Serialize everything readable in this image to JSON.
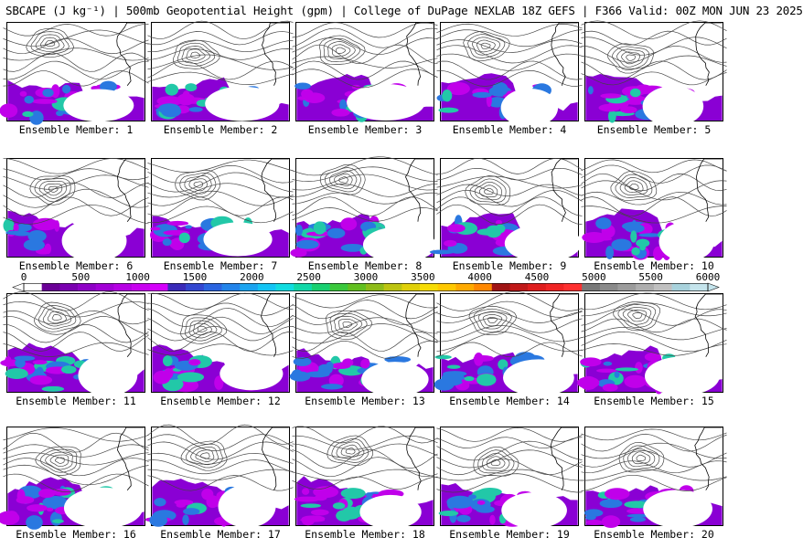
{
  "title": "SBCAPE (J kg⁻¹) | 500mb Geopotential Height (gpm) | College of DuPage NEXLAB 18Z GEFS | F366 Valid: 00Z MON JUN 23 2025",
  "members": [
    "Ensemble Member: 1",
    "Ensemble Member: 2",
    "Ensemble Member: 3",
    "Ensemble Member: 4",
    "Ensemble Member: 5",
    "Ensemble Member: 6",
    "Ensemble Member: 7",
    "Ensemble Member: 8",
    "Ensemble Member: 9",
    "Ensemble Member: 10",
    "Ensemble Member: 11",
    "Ensemble Member: 12",
    "Ensemble Member: 13",
    "Ensemble Member: 14",
    "Ensemble Member: 15",
    "Ensemble Member: 16",
    "Ensemble Member: 17",
    "Ensemble Member: 18",
    "Ensemble Member: 19",
    "Ensemble Member: 20"
  ],
  "colorbar": {
    "ticks": [
      "0",
      "500",
      "1000",
      "1500",
      "2000",
      "2500",
      "3000",
      "3500",
      "4000",
      "4500",
      "5000",
      "5500",
      "6000"
    ],
    "colors": [
      "#ffffff",
      "#6a0096",
      "#7a00b0",
      "#8e00c6",
      "#a200d6",
      "#b600e4",
      "#c800f0",
      "#d400fa",
      "#3a2ab8",
      "#3246d0",
      "#2a64e0",
      "#2284ea",
      "#1aa4f0",
      "#12c4f4",
      "#10dce0",
      "#10d8a8",
      "#18d070",
      "#3ac83c",
      "#62c020",
      "#8ebc18",
      "#bcc410",
      "#e0d008",
      "#f6dc04",
      "#ffc800",
      "#ffaa00",
      "#ff8800",
      "#a01414",
      "#c01818",
      "#de1c1c",
      "#f02424",
      "#ff3030",
      "#787878",
      "#8a8a8a",
      "#9c9c9c",
      "#aeaeae",
      "#c0c0c0",
      "#a8d2dc",
      "#c4e4ec"
    ]
  },
  "legend_colors": {
    "cape_low": "#8a00d4",
    "cape_mid": "#c000ea",
    "cape_high": "#2a78e0",
    "cape_peak": "#22c8a8",
    "contour": "#444444",
    "coast": "#000000"
  }
}
